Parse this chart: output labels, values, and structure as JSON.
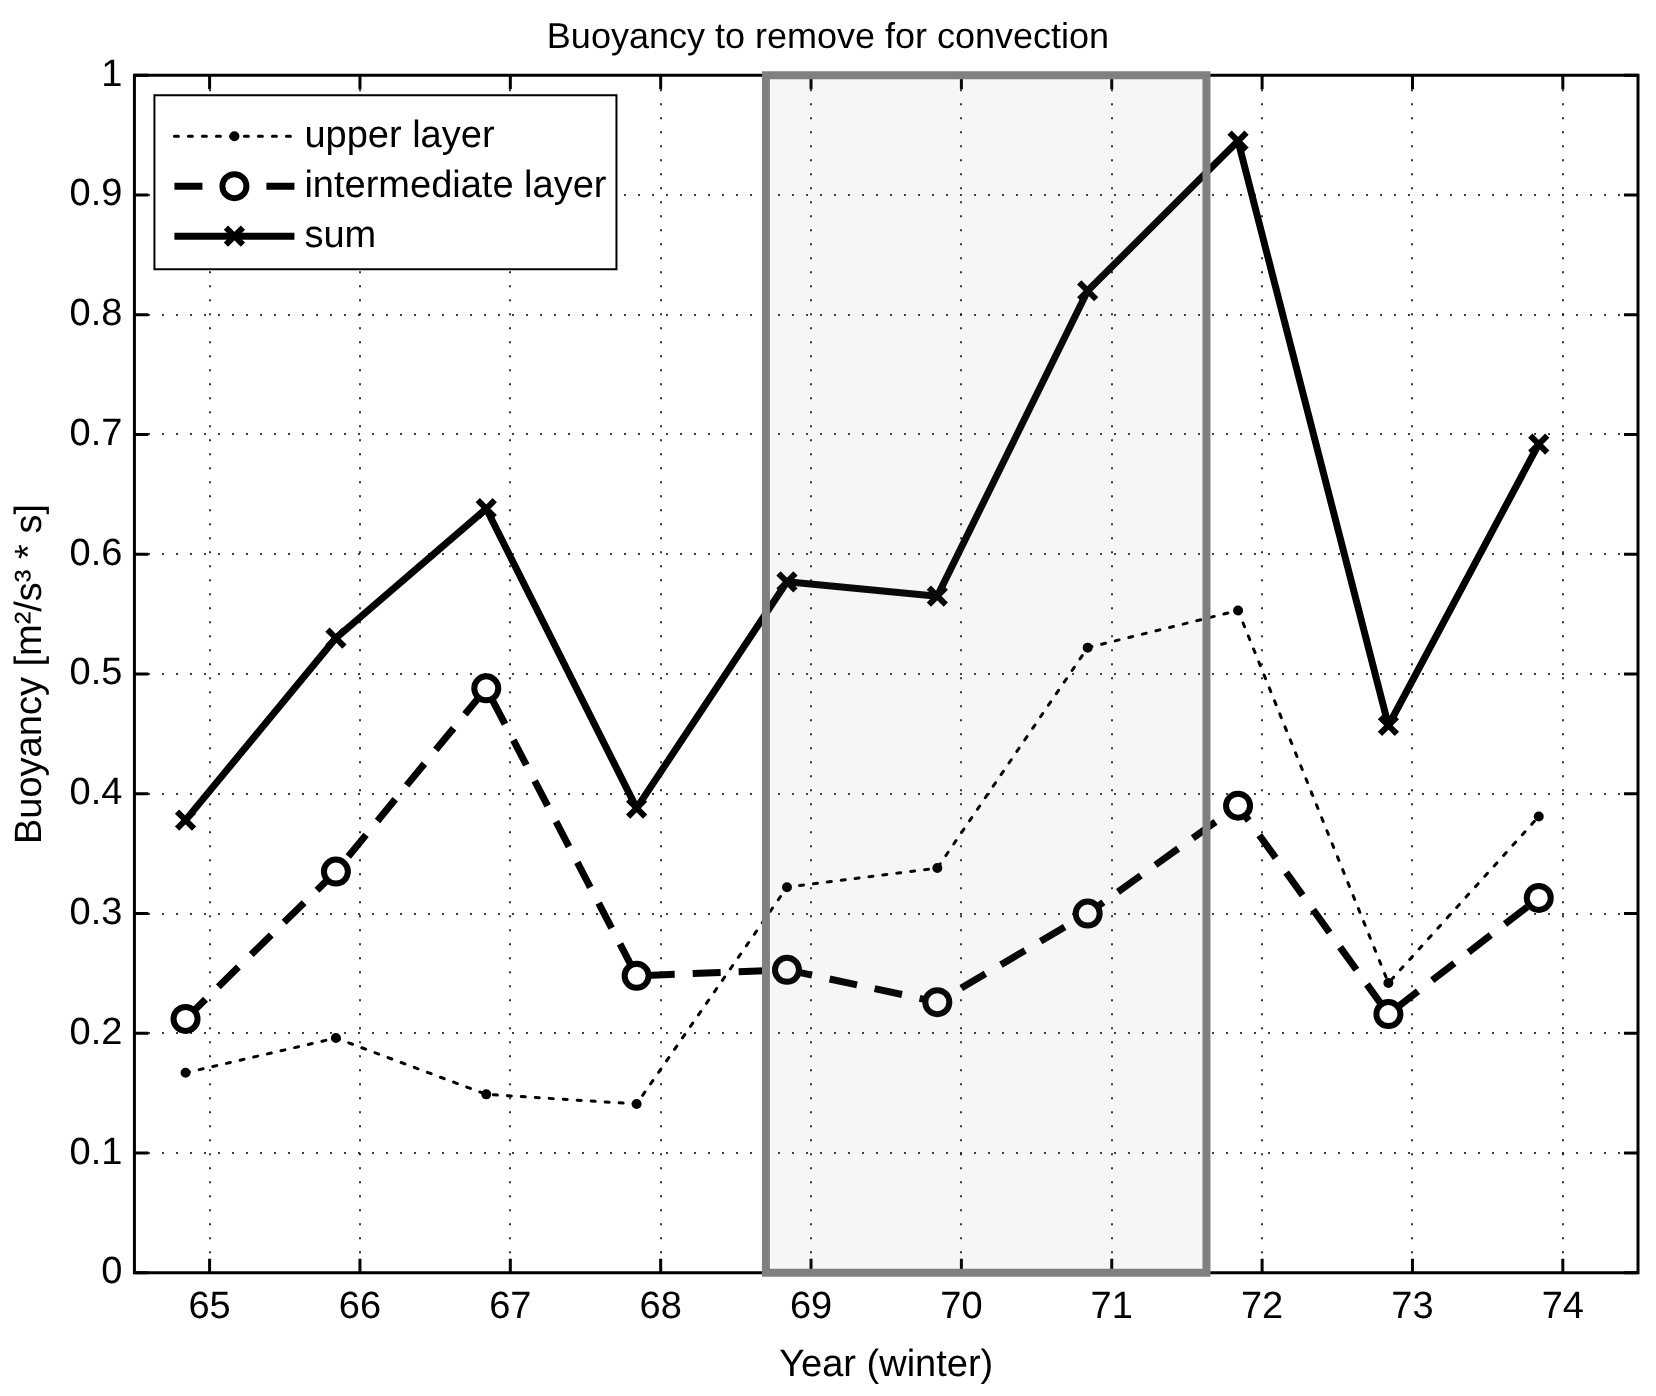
{
  "chart_data": {
    "type": "line",
    "title": "Buoyancy to remove for convection",
    "xlabel": "Year (winter)",
    "ylabel": "Buoyancy [m²/s³ * s]",
    "x": [
      64.84,
      65.84,
      66.84,
      67.84,
      68.84,
      69.84,
      70.84,
      71.84,
      72.84,
      73.84
    ],
    "series": [
      {
        "name": "upper layer",
        "color": "#000000",
        "line_style": "dotted",
        "marker": "circle",
        "values": [
          0.167,
          0.196,
          0.149,
          0.141,
          0.322,
          0.338,
          0.522,
          0.553,
          0.242,
          0.381
        ]
      },
      {
        "name": "intermediate layer",
        "color": "#000000",
        "line_style": "dashed",
        "marker": "circle",
        "values": [
          0.212,
          0.335,
          0.488,
          0.248,
          0.253,
          0.226,
          0.3,
          0.39,
          0.216,
          0.313
        ]
      },
      {
        "name": "sum",
        "color": "#000000",
        "line_style": "solid",
        "marker": "cross",
        "values": [
          0.378,
          0.53,
          0.638,
          0.388,
          0.577,
          0.565,
          0.82,
          0.945,
          0.457,
          0.692
        ]
      }
    ],
    "xlim": [
      64.5,
      74.5
    ],
    "xticks": [
      65,
      66,
      67,
      68,
      69,
      70,
      71,
      72,
      73,
      74
    ],
    "ylim": [
      0,
      1
    ],
    "yticks": [
      0,
      0.1,
      0.2,
      0.3,
      0.4,
      0.5,
      0.6,
      0.7,
      0.8,
      0.9,
      1
    ],
    "bands": [
      {
        "axis": "x",
        "from": 68.7,
        "to": 71.63,
        "color": "#808080"
      }
    ],
    "grid": true,
    "legend": "top left"
  }
}
